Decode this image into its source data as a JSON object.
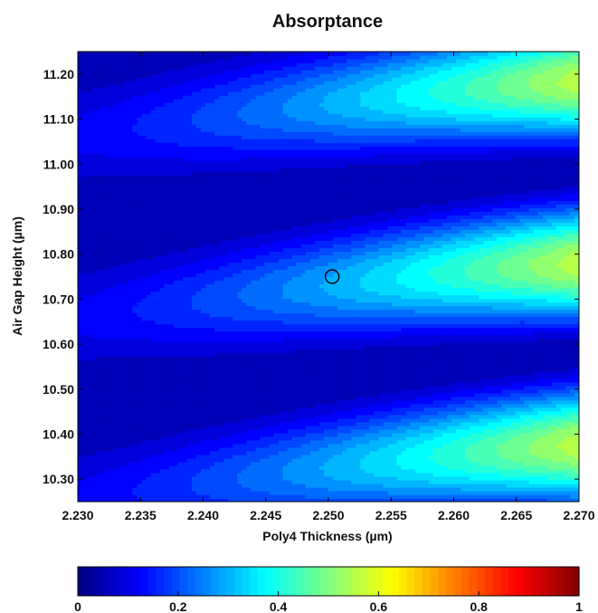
{
  "chart_data": {
    "type": "heatmap",
    "subtype": "filled-contour",
    "title": "Absorptance",
    "xlabel": "Poly4 Thickness (µm)",
    "ylabel": "Air Gap Height (µm)",
    "xlim": [
      2.23,
      2.27
    ],
    "ylim": [
      10.25,
      11.25
    ],
    "xticks": [
      "2.230",
      "2.235",
      "2.240",
      "2.245",
      "2.250",
      "2.255",
      "2.260",
      "2.265",
      "2.270"
    ],
    "yticks": [
      "10.30",
      "10.40",
      "10.50",
      "10.60",
      "10.70",
      "10.80",
      "10.90",
      "11.00",
      "11.10",
      "11.20"
    ],
    "grid": false,
    "colormap": "jet",
    "colorbar": {
      "position": "bottom",
      "range": [
        0,
        1
      ],
      "ticks": [
        "0",
        "0.2",
        "0.4",
        "0.6",
        "0.8",
        "1"
      ]
    },
    "value_range_observed": [
      0.0,
      0.56
    ],
    "bands": [
      {
        "air_gap_trough": 10.49,
        "value_at_trough": 0.05
      },
      {
        "air_gap_trough": 10.885,
        "value_at_trough": 0.05
      }
    ],
    "peaks": [
      {
        "poly4_thickness": 2.269,
        "air_gap_height": 10.37,
        "value": 0.56
      },
      {
        "poly4_thickness": 2.269,
        "air_gap_height": 10.78,
        "value": 0.56
      },
      {
        "poly4_thickness": 2.269,
        "air_gap_height": 11.18,
        "value": 0.56
      }
    ],
    "marker": {
      "type": "circle",
      "x": 2.2503,
      "y": 10.75
    }
  }
}
